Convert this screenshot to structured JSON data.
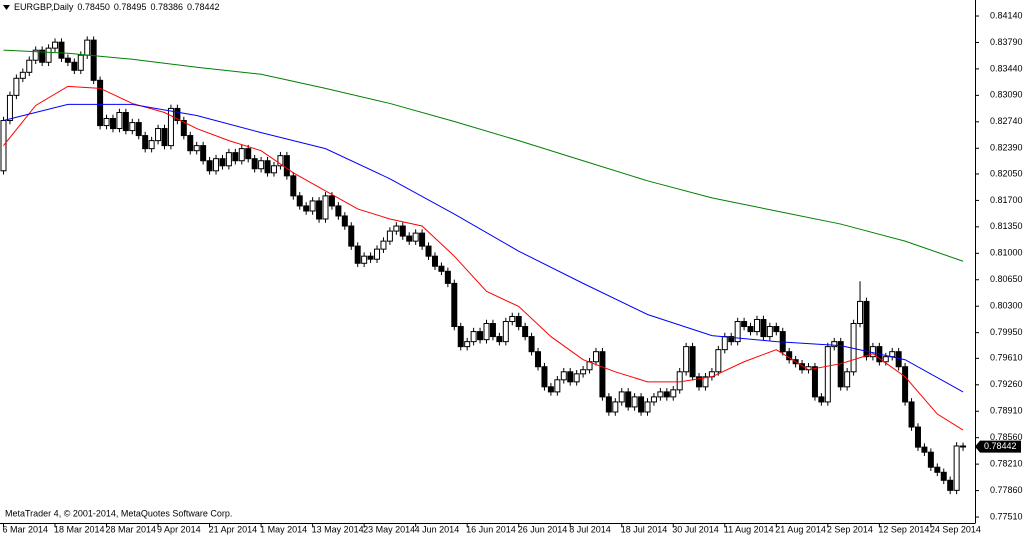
{
  "chart_data": {
    "type": "candlestick",
    "symbol": "EURGBP,Daily",
    "info_values": [
      {
        "value": 0.7845,
        "label": "0.78450"
      },
      {
        "value": 0.78495,
        "label": "0.78495"
      },
      {
        "value": 0.78386,
        "label": "0.78386"
      },
      {
        "value": 0.78442,
        "label": "0.78442"
      }
    ],
    "copyright": "MetaTrader 4, © 2001-2014, MetaQuotes Software Corp.",
    "current_price": {
      "value": 0.78442,
      "label": "0.78442"
    },
    "ylim": [
      0.77431,
      0.84352
    ],
    "yticks": [
      {
        "value": 0.8414,
        "label": "0.84140"
      },
      {
        "value": 0.8379,
        "label": "0.83790"
      },
      {
        "value": 0.8344,
        "label": "0.83440"
      },
      {
        "value": 0.8309,
        "label": "0.83090"
      },
      {
        "value": 0.8274,
        "label": "0.82740"
      },
      {
        "value": 0.8239,
        "label": "0.82390"
      },
      {
        "value": 0.8205,
        "label": "0.82050"
      },
      {
        "value": 0.817,
        "label": "0.81700"
      },
      {
        "value": 0.8135,
        "label": "0.81350"
      },
      {
        "value": 0.81,
        "label": "0.81000"
      },
      {
        "value": 0.8065,
        "label": "0.80650"
      },
      {
        "value": 0.803,
        "label": "0.80300"
      },
      {
        "value": 0.7995,
        "label": "0.79950"
      },
      {
        "value": 0.7961,
        "label": "0.79610"
      },
      {
        "value": 0.7926,
        "label": "0.79260"
      },
      {
        "value": 0.7891,
        "label": "0.78910"
      },
      {
        "value": 0.7856,
        "label": "0.78560"
      },
      {
        "value": 0.7821,
        "label": "0.78210"
      },
      {
        "value": 0.7786,
        "label": "0.77860"
      },
      {
        "value": 0.7751,
        "label": "0.77510"
      }
    ],
    "categories": [
      "6 Mar 2014",
      null,
      null,
      null,
      null,
      null,
      null,
      null,
      "18 Mar 2014",
      null,
      null,
      null,
      null,
      null,
      null,
      null,
      "28 Mar 2014",
      null,
      null,
      null,
      null,
      null,
      null,
      null,
      "9 Apr 2014",
      null,
      null,
      null,
      null,
      null,
      null,
      null,
      "21 Apr 2014",
      null,
      null,
      null,
      null,
      null,
      null,
      null,
      "1 May 2014",
      null,
      null,
      null,
      null,
      null,
      null,
      null,
      "13 May 2014",
      null,
      null,
      null,
      null,
      null,
      null,
      null,
      "23 May 2014",
      null,
      null,
      null,
      null,
      null,
      null,
      null,
      "4 Jun 2014",
      null,
      null,
      null,
      null,
      null,
      null,
      null,
      "16 Jun 2014",
      null,
      null,
      null,
      null,
      null,
      null,
      null,
      "26 Jun 2014",
      null,
      null,
      null,
      null,
      null,
      null,
      null,
      "8 Jul 2014",
      null,
      null,
      null,
      null,
      null,
      null,
      null,
      "18 Jul 2014",
      null,
      null,
      null,
      null,
      null,
      null,
      null,
      "30 Jul 2014",
      null,
      null,
      null,
      null,
      null,
      null,
      null,
      "11 Aug 2014",
      null,
      null,
      null,
      null,
      null,
      null,
      null,
      "21 Aug 2014",
      null,
      null,
      null,
      null,
      null,
      null,
      null,
      "2 Sep 2014",
      null,
      null,
      null,
      null,
      null,
      null,
      null,
      "12 Sep 2014",
      null,
      null,
      null,
      null,
      null,
      null,
      null,
      "24 Sep 2014",
      null,
      null,
      null,
      null,
      null
    ],
    "open": [
      0.82092,
      0.82757,
      0.8309,
      0.83316,
      0.83395,
      0.83555,
      0.83688,
      0.83528,
      0.83715,
      0.83794,
      0.83582,
      0.83528,
      0.83422,
      0.83622,
      0.83821,
      0.83289,
      0.8269,
      0.82784,
      0.82651,
      0.82863,
      0.82624,
      0.8273,
      0.82558,
      0.82385,
      0.82491,
      0.82651,
      0.82425,
      0.82917,
      0.82757,
      0.82558,
      0.82358,
      0.82425,
      0.82225,
      0.82092,
      0.82252,
      0.82158,
      0.82332,
      0.82225,
      0.82385,
      0.82252,
      0.82119,
      0.82225,
      0.82065,
      0.82158,
      0.82292,
      0.82025,
      0.8176,
      0.81627,
      0.8156,
      0.81693,
      0.81454,
      0.8176,
      0.81627,
      0.81494,
      0.81361,
      0.81095,
      0.80868,
      0.80962,
      0.80922,
      0.81055,
      0.81161,
      0.81294,
      0.81361,
      0.81228,
      0.81161,
      0.81267,
      0.81095,
      0.80962,
      0.80829,
      0.80762,
      0.80602,
      0.80031,
      0.79765,
      0.79831,
      0.79964,
      0.79857,
      0.80071,
      0.79898,
      0.79831,
      0.80097,
      0.80164,
      0.80031,
      0.79898,
      0.79698,
      0.79499,
      0.79233,
      0.79166,
      0.79326,
      0.79432,
      0.79299,
      0.79405,
      0.79459,
      0.79565,
      0.79698,
      0.791,
      0.789,
      0.79033,
      0.79166,
      0.78967,
      0.791,
      0.789,
      0.79033,
      0.791,
      0.79166,
      0.791,
      0.79193,
      0.79432,
      0.79765,
      0.79366,
      0.79233,
      0.79366,
      0.79432,
      0.79725,
      0.79898,
      0.79831,
      0.80097,
      0.80031,
      0.79964,
      0.80124,
      0.79898,
      0.80031,
      0.79964,
      0.79698,
      0.79592,
      0.79539,
      0.79459,
      0.79499,
      0.791,
      0.79033,
      0.79765,
      0.79831,
      0.79233,
      0.79432,
      0.80071,
      0.80363,
      0.79632,
      0.79765,
      0.79565,
      0.79632,
      0.79698,
      0.79499,
      0.79033,
      0.78701,
      0.78435,
      0.78368,
      0.78169,
      0.78102,
      0.77996,
      0.77863,
      0.7845
    ],
    "high": [
      0.82807,
      0.8314,
      0.83366,
      0.83445,
      0.83605,
      0.83738,
      0.83738,
      0.83765,
      0.83844,
      0.83844,
      0.83632,
      0.83578,
      0.83672,
      0.83871,
      0.83871,
      0.83339,
      0.82834,
      0.82834,
      0.82913,
      0.82913,
      0.8278,
      0.8278,
      0.82608,
      0.82541,
      0.82701,
      0.82701,
      0.82967,
      0.82967,
      0.82807,
      0.82608,
      0.82475,
      0.82475,
      0.82275,
      0.82302,
      0.82302,
      0.82382,
      0.82382,
      0.82435,
      0.82435,
      0.82302,
      0.82275,
      0.82275,
      0.82208,
      0.82342,
      0.82342,
      0.82075,
      0.8181,
      0.81677,
      0.81743,
      0.81743,
      0.8181,
      0.8181,
      0.81677,
      0.81544,
      0.81411,
      0.81145,
      0.81012,
      0.81012,
      0.81105,
      0.81211,
      0.81344,
      0.81411,
      0.81411,
      0.81278,
      0.81317,
      0.81317,
      0.81145,
      0.81012,
      0.80879,
      0.80812,
      0.80652,
      0.80081,
      0.79881,
      0.80014,
      0.80014,
      0.80121,
      0.80121,
      0.79948,
      0.80147,
      0.80214,
      0.80214,
      0.80081,
      0.79948,
      0.79748,
      0.79549,
      0.79283,
      0.79376,
      0.79482,
      0.79482,
      0.79455,
      0.79509,
      0.79615,
      0.79748,
      0.79748,
      0.7915,
      0.79083,
      0.79216,
      0.79216,
      0.7915,
      0.7915,
      0.79083,
      0.7915,
      0.79216,
      0.79216,
      0.79243,
      0.79482,
      0.79815,
      0.79815,
      0.79416,
      0.79416,
      0.79482,
      0.79775,
      0.79948,
      0.79948,
      0.80147,
      0.80147,
      0.80081,
      0.80174,
      0.80174,
      0.80081,
      0.80081,
      0.80014,
      0.79748,
      0.79642,
      0.79589,
      0.79549,
      0.79549,
      0.7915,
      0.79815,
      0.79881,
      0.79881,
      0.79482,
      0.80121,
      0.8063,
      0.80413,
      0.79815,
      0.79815,
      0.79682,
      0.79748,
      0.79748,
      0.79549,
      0.79083,
      0.78751,
      0.78485,
      0.78418,
      0.78219,
      0.78152,
      0.78046,
      0.785,
      0.78495
    ],
    "low": [
      0.82042,
      0.82707,
      0.8304,
      0.83266,
      0.83345,
      0.83505,
      0.83478,
      0.83478,
      0.83665,
      0.83532,
      0.83478,
      0.83372,
      0.83372,
      0.83572,
      0.83239,
      0.8264,
      0.8264,
      0.82601,
      0.82601,
      0.82574,
      0.82574,
      0.82508,
      0.82335,
      0.82335,
      0.82441,
      0.82375,
      0.82375,
      0.82707,
      0.82508,
      0.82308,
      0.82308,
      0.82175,
      0.82042,
      0.82042,
      0.82108,
      0.82108,
      0.82175,
      0.82175,
      0.82202,
      0.82069,
      0.82069,
      0.82015,
      0.82015,
      0.82108,
      0.81975,
      0.8171,
      0.81577,
      0.8151,
      0.8151,
      0.81404,
      0.81404,
      0.81577,
      0.81444,
      0.81311,
      0.81045,
      0.80818,
      0.80818,
      0.80872,
      0.80872,
      0.81005,
      0.81111,
      0.81244,
      0.81178,
      0.81111,
      0.81111,
      0.81045,
      0.80912,
      0.80779,
      0.80712,
      0.80552,
      0.79981,
      0.79715,
      0.79715,
      0.79781,
      0.79807,
      0.79807,
      0.79848,
      0.79781,
      0.79781,
      0.80047,
      0.79981,
      0.79848,
      0.79648,
      0.79449,
      0.79183,
      0.79116,
      0.79116,
      0.79276,
      0.79249,
      0.79249,
      0.79355,
      0.79409,
      0.79515,
      0.7905,
      0.7885,
      0.7885,
      0.78983,
      0.78917,
      0.78917,
      0.7885,
      0.7885,
      0.78983,
      0.7905,
      0.7905,
      0.7905,
      0.79143,
      0.79382,
      0.79316,
      0.79183,
      0.79183,
      0.79316,
      0.79382,
      0.79675,
      0.79781,
      0.79781,
      0.79981,
      0.79914,
      0.79914,
      0.79848,
      0.79848,
      0.79914,
      0.79648,
      0.79542,
      0.79489,
      0.79409,
      0.79409,
      0.7905,
      0.78983,
      0.78983,
      0.79715,
      0.79183,
      0.79183,
      0.79382,
      0.80021,
      0.79582,
      0.79582,
      0.79515,
      0.79515,
      0.79582,
      0.79449,
      0.78983,
      0.78651,
      0.78385,
      0.78318,
      0.78119,
      0.78052,
      0.77946,
      0.77813,
      0.77813,
      0.78386
    ],
    "close": [
      0.82757,
      0.8309,
      0.83316,
      0.83395,
      0.83555,
      0.83688,
      0.83528,
      0.83715,
      0.83794,
      0.83582,
      0.83528,
      0.83422,
      0.83622,
      0.83821,
      0.83289,
      0.8269,
      0.82784,
      0.82651,
      0.82863,
      0.82624,
      0.8273,
      0.82558,
      0.82385,
      0.82491,
      0.82651,
      0.82425,
      0.82917,
      0.82757,
      0.82558,
      0.82358,
      0.82425,
      0.82225,
      0.82092,
      0.82252,
      0.82158,
      0.82332,
      0.82225,
      0.82385,
      0.82252,
      0.82119,
      0.82225,
      0.82065,
      0.82158,
      0.82292,
      0.82025,
      0.8176,
      0.81627,
      0.8156,
      0.81693,
      0.81454,
      0.8176,
      0.81627,
      0.81494,
      0.81361,
      0.81095,
      0.80868,
      0.80962,
      0.80922,
      0.81055,
      0.81161,
      0.81294,
      0.81361,
      0.81228,
      0.81161,
      0.81267,
      0.81095,
      0.80962,
      0.80829,
      0.80762,
      0.80602,
      0.80031,
      0.79765,
      0.79831,
      0.79964,
      0.79857,
      0.80071,
      0.79898,
      0.79831,
      0.80097,
      0.80164,
      0.80031,
      0.79898,
      0.79698,
      0.79499,
      0.79233,
      0.79166,
      0.79326,
      0.79432,
      0.79299,
      0.79405,
      0.79459,
      0.79565,
      0.79698,
      0.791,
      0.789,
      0.79033,
      0.79166,
      0.78967,
      0.791,
      0.789,
      0.79033,
      0.791,
      0.79166,
      0.791,
      0.79193,
      0.79432,
      0.79765,
      0.79366,
      0.79233,
      0.79366,
      0.79432,
      0.79725,
      0.79898,
      0.79831,
      0.80097,
      0.80031,
      0.79964,
      0.80124,
      0.79898,
      0.80031,
      0.79964,
      0.79698,
      0.79592,
      0.79539,
      0.79459,
      0.79499,
      0.791,
      0.79033,
      0.79765,
      0.79831,
      0.79233,
      0.79432,
      0.80071,
      0.80363,
      0.79632,
      0.79765,
      0.79565,
      0.79632,
      0.79698,
      0.79499,
      0.79033,
      0.78701,
      0.78435,
      0.78368,
      0.78169,
      0.78102,
      0.77996,
      0.77863,
      0.7845,
      0.78442
    ],
    "up_color": "#ffffff",
    "down_color": "#000000",
    "lines": [
      {
        "color": "#ff0000",
        "x": [
          0,
          5,
          10,
          15,
          20,
          25,
          30,
          35,
          40,
          45,
          50,
          55,
          60,
          65,
          70,
          75,
          80,
          85,
          90,
          95,
          100,
          105,
          110,
          115,
          120,
          125,
          130,
          135,
          140,
          145,
          149
        ],
        "values": [
          0.82425,
          0.82956,
          0.83209,
          0.83183,
          0.82983,
          0.82863,
          0.82651,
          0.82491,
          0.82358,
          0.82065,
          0.81826,
          0.81587,
          0.81454,
          0.81361,
          0.80962,
          0.80496,
          0.80297,
          0.79898,
          0.79592,
          0.79432,
          0.79299,
          0.79299,
          0.79366,
          0.79565,
          0.79725,
          0.79459,
          0.79539,
          0.79671,
          0.79366,
          0.78873,
          0.78661
        ]
      },
      {
        "color": "#0000ff",
        "x": [
          0,
          10,
          20,
          30,
          40,
          50,
          60,
          70,
          80,
          90,
          100,
          110,
          120,
          130,
          140,
          149
        ],
        "values": [
          0.82757,
          0.8297,
          0.8297,
          0.82824,
          0.82597,
          0.82385,
          0.81986,
          0.8152,
          0.81028,
          0.80602,
          0.8019,
          0.79911,
          0.79831,
          0.79778,
          0.79592,
          0.79166
        ]
      },
      {
        "color": "#008000",
        "x": [
          0,
          10,
          20,
          30,
          40,
          50,
          60,
          70,
          80,
          90,
          100,
          110,
          120,
          130,
          140,
          149
        ],
        "values": [
          0.83688,
          0.83648,
          0.83568,
          0.83462,
          0.83369,
          0.83183,
          0.82983,
          0.82744,
          0.82491,
          0.82225,
          0.81959,
          0.81733,
          0.8156,
          0.81387,
          0.81161,
          0.80895
        ]
      }
    ]
  }
}
